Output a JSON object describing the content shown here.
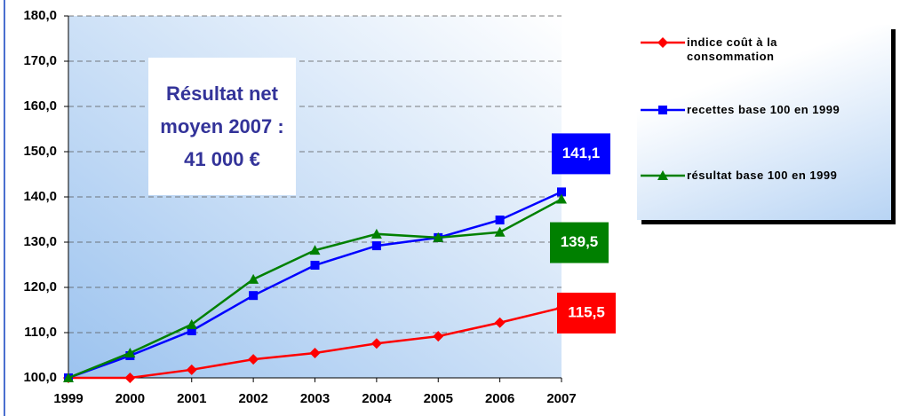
{
  "chart_data": {
    "type": "line",
    "annotation": [
      "Résultat net",
      "moyen 2007 :",
      "41 000 €"
    ],
    "categories": [
      "1999",
      "2000",
      "2001",
      "2002",
      "2003",
      "2004",
      "2005",
      "2006",
      "2007"
    ],
    "series": [
      {
        "name": "indice coût à la consommation",
        "color": "#ff0000",
        "marker": "diamond",
        "values": [
          100,
          100,
          101.8,
          104.1,
          105.5,
          107.6,
          109.2,
          112.2,
          115.5
        ],
        "value_labels": [
          null,
          null,
          null,
          null,
          null,
          null,
          null,
          null,
          "115,5"
        ]
      },
      {
        "name": "recettes base 100 en 1999",
        "color": "#0000ff",
        "marker": "square",
        "values": [
          100,
          104.9,
          110.4,
          118.2,
          124.9,
          129.2,
          131.0,
          134.9,
          141.1
        ],
        "value_labels": [
          null,
          null,
          null,
          null,
          null,
          null,
          null,
          null,
          "141,1"
        ]
      },
      {
        "name": "résultat base 100 en 1999",
        "color": "#008000",
        "marker": "triangle",
        "values": [
          100,
          105.5,
          111.8,
          121.8,
          128.2,
          131.8,
          131.0,
          132.2,
          139.5
        ],
        "value_labels": [
          null,
          null,
          null,
          null,
          null,
          null,
          null,
          null,
          "139,5"
        ]
      }
    ],
    "ylim": [
      100,
      180
    ],
    "yticks": [
      {
        "value": 100,
        "label": "100,0"
      },
      {
        "value": 110,
        "label": "110,0"
      },
      {
        "value": 120,
        "label": "120,0"
      },
      {
        "value": 130,
        "label": "130,0"
      },
      {
        "value": 140,
        "label": "140,0"
      },
      {
        "value": 150,
        "label": "150,0"
      },
      {
        "value": 160,
        "label": "160,0"
      },
      {
        "value": 170,
        "label": "170,0"
      },
      {
        "value": 180,
        "label": "180,0"
      }
    ],
    "grid": true,
    "legend": "right"
  }
}
